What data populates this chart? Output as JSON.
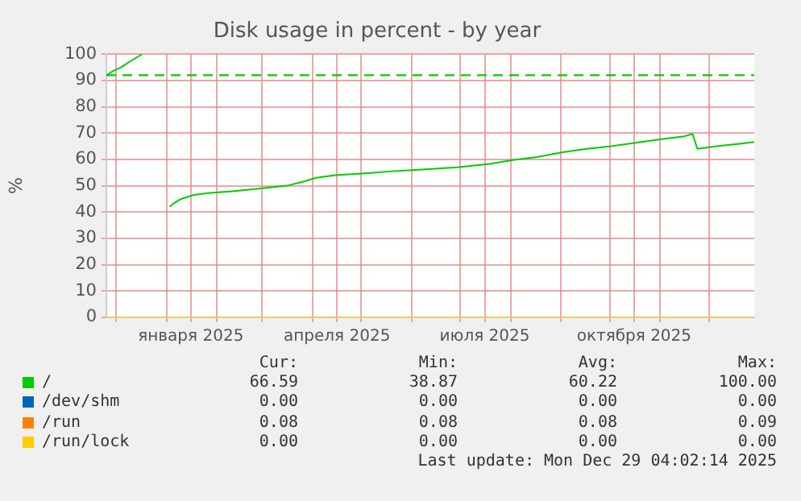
{
  "chart_data": {
    "type": "line",
    "title": "Disk usage in percent - by year",
    "ylabel": "%",
    "x": [
      "2024-11-25",
      "2024-11-29",
      "2024-12-04",
      "2024-12-09",
      "2024-12-17",
      "2024-12-25",
      "2025-01-03",
      "2025-01-06",
      "2025-01-10",
      "2025-01-18",
      "2025-01-28",
      "2025-02-12",
      "2025-03-01",
      "2025-03-16",
      "2025-03-26",
      "2025-04-03",
      "2025-04-15",
      "2025-05-05",
      "2025-05-20",
      "2025-06-09",
      "2025-06-29",
      "2025-07-19",
      "2025-08-03",
      "2025-08-18",
      "2025-09-02",
      "2025-09-17",
      "2025-10-02",
      "2025-10-17",
      "2025-11-01",
      "2025-11-16",
      "2025-11-21",
      "2025-11-24",
      "2025-12-06",
      "2025-12-21",
      "2025-12-29"
    ],
    "series": [
      {
        "name": "/",
        "color": "#00cc00",
        "values": [
          92,
          93.5,
          95,
          97,
          100,
          null,
          42,
          43.5,
          45,
          46.5,
          47.3,
          48,
          49,
          50,
          51.5,
          53,
          54,
          54.8,
          55.5,
          56.2,
          57,
          58.3,
          59.8,
          61,
          62.7,
          64,
          65,
          66.3,
          67.6,
          68.8,
          69.7,
          64,
          65,
          66,
          66.6
        ]
      },
      {
        "name": "/dev/shm",
        "color": "#0066b3",
        "values": [
          null,
          null,
          null,
          null,
          null,
          null,
          null,
          null,
          null,
          null,
          null,
          null,
          null,
          null,
          null,
          null,
          null,
          null,
          null,
          null,
          null,
          null,
          null,
          null,
          null,
          null,
          null,
          null,
          null,
          null,
          null,
          null,
          null,
          null,
          null
        ]
      },
      {
        "name": "/run",
        "color": "#ff8000",
        "values": [
          null,
          null,
          null,
          null,
          null,
          null,
          null,
          null,
          null,
          null,
          null,
          null,
          null,
          null,
          null,
          null,
          null,
          null,
          null,
          null,
          null,
          null,
          null,
          null,
          null,
          null,
          null,
          null,
          null,
          null,
          null,
          null,
          null,
          null,
          null
        ]
      },
      {
        "name": "/run/lock",
        "color": "#ffcc00",
        "x": [
          "2024-11-25",
          "2025-12-29"
        ],
        "values": [
          0,
          0
        ]
      }
    ],
    "xlim": [
      "2024-11-25",
      "2025-12-29"
    ],
    "xticks": [
      {
        "value": "2024-12-01",
        "label": null
      },
      {
        "value": "2025-01-01",
        "label": null
      },
      {
        "value": "2025-01-16",
        "label": "января 2025"
      },
      {
        "value": "2025-02-01",
        "label": null
      },
      {
        "value": "2025-03-01",
        "label": null
      },
      {
        "value": "2025-04-01",
        "label": null
      },
      {
        "value": "2025-04-16",
        "label": "апреля 2025"
      },
      {
        "value": "2025-05-01",
        "label": null
      },
      {
        "value": "2025-06-01",
        "label": null
      },
      {
        "value": "2025-07-01",
        "label": null
      },
      {
        "value": "2025-07-16",
        "label": "июля 2025"
      },
      {
        "value": "2025-08-01",
        "label": null
      },
      {
        "value": "2025-09-01",
        "label": null
      },
      {
        "value": "2025-10-01",
        "label": null
      },
      {
        "value": "2025-10-16",
        "label": "октября 2025"
      },
      {
        "value": "2025-11-01",
        "label": null
      },
      {
        "value": "2025-12-01",
        "label": null
      }
    ],
    "ylim": [
      0,
      100
    ],
    "yticks": [
      0,
      10,
      20,
      30,
      40,
      50,
      60,
      70,
      80,
      90,
      100
    ],
    "ref_lines": [
      {
        "axis": "y",
        "value": 92,
        "color": "#00cc00",
        "line_style": "dashed"
      }
    ],
    "grid": true,
    "legend": "bottom",
    "marker": "none",
    "annotations": [
      "Cur:",
      "Min:",
      "Avg:",
      "Max:",
      "66.59",
      "38.87",
      "60.22",
      "100.00",
      "0.00",
      "0.00",
      "0.00",
      "0.00",
      "0.08",
      "0.08",
      "0.08",
      "0.09",
      "0.00",
      "0.00",
      "0.00",
      "0.00",
      "Last update: Mon Dec 29 04:02:14 2025"
    ]
  }
}
